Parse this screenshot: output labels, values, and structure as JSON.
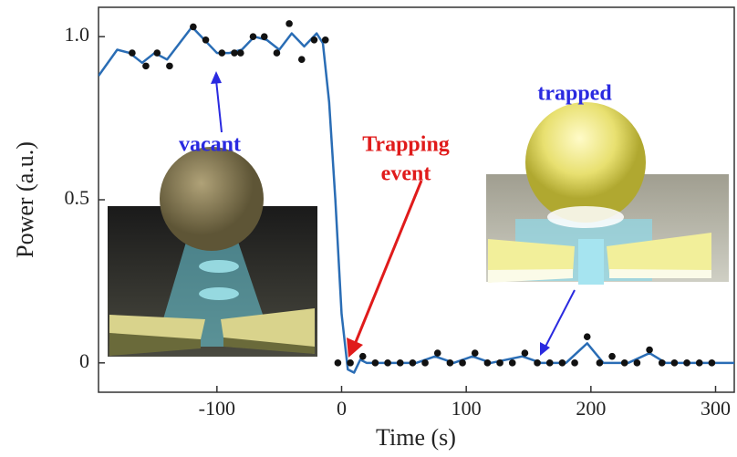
{
  "chart_data": {
    "type": "scatter",
    "xlabel": "Time (s)",
    "ylabel": "Power (a.u.)",
    "xlim": [
      -195,
      315
    ],
    "ylim": [
      -0.09,
      1.09
    ],
    "xticks": [
      -100,
      0,
      100,
      200,
      300
    ],
    "yticks": [
      0,
      0.5,
      {
        "value": 1,
        "label": "1.0"
      }
    ],
    "grid": false,
    "annotations": [
      "vacant",
      "Trapping",
      "event",
      "trapped"
    ],
    "series": [
      {
        "mode": "markers",
        "color": "#111111",
        "x": [
          -168,
          -157,
          -148,
          -138,
          -119,
          -109,
          -96,
          -86,
          -81,
          -71,
          -62,
          -52,
          -42,
          -32,
          -22,
          -13,
          -3,
          7,
          17,
          27,
          37,
          47,
          57,
          67,
          77,
          87,
          97,
          107,
          117,
          127,
          137,
          147,
          157,
          167,
          177,
          187,
          197,
          207,
          217,
          227,
          237,
          247,
          257,
          267,
          277,
          287,
          297
        ],
        "values": [
          0.95,
          0.91,
          0.95,
          0.91,
          1.03,
          0.99,
          0.95,
          0.95,
          0.95,
          1.0,
          1.0,
          0.95,
          1.04,
          0.93,
          0.99,
          0.99,
          0,
          0,
          0.02,
          0,
          0,
          0,
          0,
          0,
          0.03,
          0,
          0,
          0.03,
          0,
          0,
          0,
          0.03,
          0,
          0,
          0,
          0,
          0.08,
          0,
          0.02,
          0,
          0,
          0.04,
          0,
          0,
          0,
          0,
          0
        ]
      },
      {
        "mode": "line",
        "color": "#2a6db5",
        "x": [
          -195,
          -180,
          -170,
          -160,
          -150,
          -140,
          -130,
          -120,
          -110,
          -100,
          -90,
          -80,
          -70,
          -60,
          -50,
          -40,
          -30,
          -20,
          -15,
          -10,
          -5,
          0,
          5,
          10,
          15,
          20,
          40,
          60,
          75,
          90,
          105,
          120,
          145,
          160,
          180,
          197,
          210,
          230,
          247,
          260,
          315
        ],
        "values": [
          0.88,
          0.96,
          0.95,
          0.92,
          0.95,
          0.93,
          0.98,
          1.03,
          0.99,
          0.95,
          0.95,
          0.96,
          1.0,
          0.99,
          0.96,
          1.01,
          0.97,
          1.01,
          0.98,
          0.8,
          0.5,
          0.15,
          -0.02,
          -0.03,
          0.01,
          0,
          0,
          0,
          0.02,
          0,
          0.02,
          0,
          0.02,
          0,
          0,
          0.06,
          0,
          0,
          0.03,
          0,
          0
        ]
      }
    ]
  }
}
